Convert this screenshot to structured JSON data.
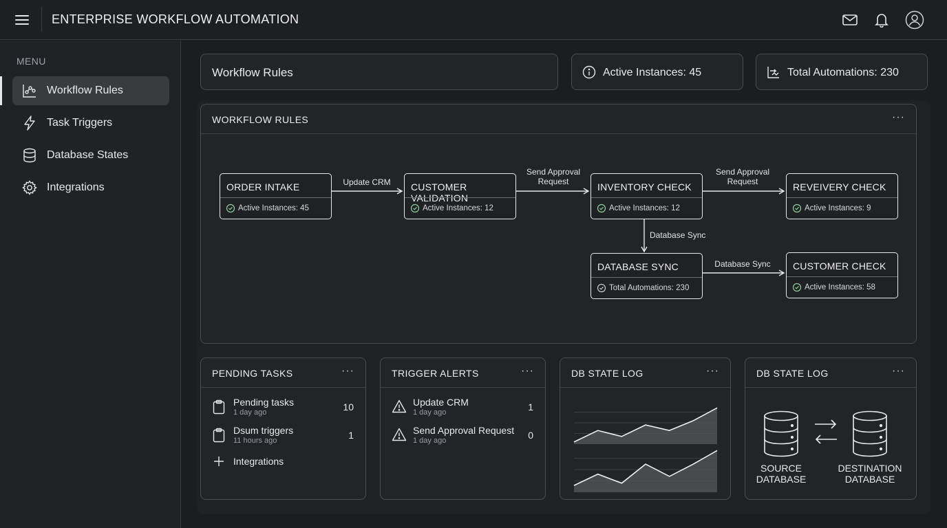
{
  "header": {
    "title": "ENTERPRISE WORKFLOW AUTOMATION",
    "icons": [
      "menu-icon",
      "mail-icon",
      "bell-icon",
      "user-icon"
    ]
  },
  "sidebar": {
    "heading": "MENU",
    "items": [
      {
        "label": "Workflow Rules",
        "icon": "workflow-icon",
        "active": true
      },
      {
        "label": "Task Triggers",
        "icon": "lightning-icon",
        "active": false
      },
      {
        "label": "Database States",
        "icon": "database-icon",
        "active": false
      },
      {
        "label": "Integrations",
        "icon": "gear-icon",
        "active": false
      }
    ]
  },
  "stats": {
    "page_title": "Workflow Rules",
    "active_instances": "Active Instances: 45",
    "total_automations": "Total Automations: 230"
  },
  "workflow": {
    "title": "WORKFLOW RULES",
    "menu": "···",
    "nodes": [
      {
        "title": "ORDER INTAKE",
        "sub": "Active Instances: 45"
      },
      {
        "title": "CUSTOMER VALIDATION",
        "sub": "Active Instances: 12"
      },
      {
        "title": "INVENTORY CHECK",
        "sub": "Active Instances: 12"
      },
      {
        "title": "REVEIVERY CHECK",
        "sub": "Active Instances: 9"
      },
      {
        "title": "DATABASE SYNC",
        "sub": "Total Automations: 230"
      },
      {
        "title": "CUSTOMER CHECK",
        "sub": "Active Instances: 58"
      }
    ],
    "edges": [
      {
        "label": "Update CRM"
      },
      {
        "label": "Send Approval\nRequest"
      },
      {
        "label": "Send Approval\nRequest"
      },
      {
        "label": "Database Sync"
      },
      {
        "label": "Database Sync"
      }
    ]
  },
  "pending_tasks": {
    "title": "PENDING TASKS",
    "menu": "···",
    "rows": [
      {
        "title": "Pending tasks",
        "sub": "1 day ago",
        "count": "10"
      },
      {
        "title": "Dsum triggers",
        "sub": "11 hours ago",
        "count": "1"
      }
    ],
    "add_label": "Integrations"
  },
  "trigger_alerts": {
    "title": "TRIGGER ALERTS",
    "menu": "···",
    "rows": [
      {
        "title": "Update CRM",
        "sub": "1 day ago",
        "count": "1"
      },
      {
        "title": "Send Approval Request",
        "sub": "1 day ago",
        "count": "0"
      }
    ]
  },
  "db_log_chart": {
    "title": "DB STATE LOG",
    "menu": "···"
  },
  "db_log_sync": {
    "title": "DB STATE LOG",
    "menu": "···",
    "source": "SOURCE\nDATABASE",
    "destination": "DESTINATION\nDATABASE"
  },
  "chart_data": [
    {
      "type": "area",
      "title": "",
      "xlabel": "",
      "ylabel": "",
      "x": [
        0,
        1,
        2,
        3,
        4,
        5,
        6
      ],
      "values": [
        0.05,
        0.32,
        0.18,
        0.45,
        0.32,
        0.55,
        0.85
      ],
      "ylim": [
        0,
        1
      ],
      "grid": true
    },
    {
      "type": "area",
      "title": "",
      "xlabel": "",
      "ylabel": "",
      "x": [
        0,
        1,
        2,
        3,
        4,
        5,
        6
      ],
      "values": [
        0.15,
        0.4,
        0.2,
        0.62,
        0.35,
        0.62,
        0.92
      ],
      "ylim": [
        0,
        1
      ],
      "grid": true
    }
  ],
  "colors": {
    "background": "#1b1d20",
    "card": "#222427",
    "border": "#4a4c50",
    "text": "#e8e9eb",
    "muted": "#9a9da2"
  }
}
